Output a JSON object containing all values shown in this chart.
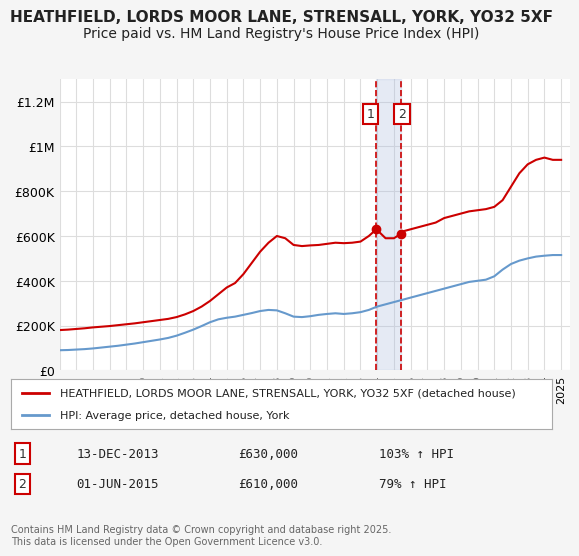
{
  "title": "HEATHFIELD, LORDS MOOR LANE, STRENSALL, YORK, YO32 5XF",
  "subtitle": "Price paid vs. HM Land Registry's House Price Index (HPI)",
  "title_fontsize": 11,
  "subtitle_fontsize": 10,
  "ylabel_fontsize": 9,
  "xlabel_fontsize": 8,
  "ylim": [
    0,
    1300000
  ],
  "yticks": [
    0,
    200000,
    400000,
    600000,
    800000,
    1000000,
    1200000
  ],
  "ytick_labels": [
    "£0",
    "£200K",
    "£400K",
    "£600K",
    "£800K",
    "£1M",
    "£1.2M"
  ],
  "background_color": "#f5f5f5",
  "plot_bg_color": "#ffffff",
  "grid_color": "#dddddd",
  "red_color": "#cc0000",
  "blue_color": "#6699cc",
  "transaction1_date": 2013.95,
  "transaction1_price": 630000,
  "transaction1_label": "13-DEC-2013",
  "transaction1_amount": "£630,000",
  "transaction1_pct": "103% ↑ HPI",
  "transaction2_date": 2015.42,
  "transaction2_price": 610000,
  "transaction2_label": "01-JUN-2015",
  "transaction2_amount": "£610,000",
  "transaction2_pct": "79% ↑ HPI",
  "vline_color": "#cc0000",
  "vline_style": "--",
  "shade_color": "#aabbdd",
  "legend_label_red": "HEATHFIELD, LORDS MOOR LANE, STRENSALL, YORK, YO32 5XF (detached house)",
  "legend_label_blue": "HPI: Average price, detached house, York",
  "footnote": "Contains HM Land Registry data © Crown copyright and database right 2025.\nThis data is licensed under the Open Government Licence v3.0.",
  "xtick_years": [
    1995,
    1996,
    1997,
    1998,
    1999,
    2000,
    2001,
    2002,
    2003,
    2004,
    2005,
    2006,
    2007,
    2008,
    2009,
    2010,
    2011,
    2012,
    2013,
    2014,
    2015,
    2016,
    2017,
    2018,
    2019,
    2020,
    2021,
    2022,
    2023,
    2024,
    2025
  ],
  "red_x": [
    1995.0,
    1995.5,
    1996.0,
    1996.5,
    1997.0,
    1997.5,
    1998.0,
    1998.5,
    1999.0,
    1999.5,
    2000.0,
    2000.5,
    2001.0,
    2001.5,
    2002.0,
    2002.5,
    2003.0,
    2003.5,
    2004.0,
    2004.5,
    2005.0,
    2005.5,
    2006.0,
    2006.5,
    2007.0,
    2007.5,
    2008.0,
    2008.5,
    2009.0,
    2009.5,
    2010.0,
    2010.5,
    2011.0,
    2011.5,
    2012.0,
    2012.5,
    2013.0,
    2013.5,
    2013.95,
    2014.5,
    2015.0,
    2015.42,
    2015.5,
    2016.0,
    2016.5,
    2017.0,
    2017.5,
    2018.0,
    2018.5,
    2019.0,
    2019.5,
    2020.0,
    2020.5,
    2021.0,
    2021.5,
    2022.0,
    2022.5,
    2023.0,
    2023.5,
    2024.0,
    2024.5,
    2025.0
  ],
  "red_y": [
    180000,
    182000,
    185000,
    188000,
    192000,
    195000,
    198000,
    202000,
    206000,
    210000,
    215000,
    220000,
    225000,
    230000,
    238000,
    250000,
    265000,
    285000,
    310000,
    340000,
    370000,
    390000,
    430000,
    480000,
    530000,
    570000,
    600000,
    590000,
    560000,
    555000,
    558000,
    560000,
    565000,
    570000,
    568000,
    570000,
    575000,
    600000,
    630000,
    590000,
    590000,
    610000,
    620000,
    630000,
    640000,
    650000,
    660000,
    680000,
    690000,
    700000,
    710000,
    715000,
    720000,
    730000,
    760000,
    820000,
    880000,
    920000,
    940000,
    950000,
    940000,
    940000
  ],
  "blue_x": [
    1995.0,
    1995.5,
    1996.0,
    1996.5,
    1997.0,
    1997.5,
    1998.0,
    1998.5,
    1999.0,
    1999.5,
    2000.0,
    2000.5,
    2001.0,
    2001.5,
    2002.0,
    2002.5,
    2003.0,
    2003.5,
    2004.0,
    2004.5,
    2005.0,
    2005.5,
    2006.0,
    2006.5,
    2007.0,
    2007.5,
    2008.0,
    2008.5,
    2009.0,
    2009.5,
    2010.0,
    2010.5,
    2011.0,
    2011.5,
    2012.0,
    2012.5,
    2013.0,
    2013.5,
    2014.0,
    2014.5,
    2015.0,
    2015.5,
    2016.0,
    2016.5,
    2017.0,
    2017.5,
    2018.0,
    2018.5,
    2019.0,
    2019.5,
    2020.0,
    2020.5,
    2021.0,
    2021.5,
    2022.0,
    2022.5,
    2023.0,
    2023.5,
    2024.0,
    2024.5,
    2025.0
  ],
  "blue_y": [
    90000,
    91000,
    93000,
    95000,
    98000,
    102000,
    106000,
    110000,
    115000,
    120000,
    126000,
    132000,
    138000,
    145000,
    155000,
    168000,
    182000,
    198000,
    215000,
    228000,
    235000,
    240000,
    248000,
    256000,
    265000,
    270000,
    268000,
    255000,
    240000,
    238000,
    242000,
    248000,
    252000,
    255000,
    252000,
    255000,
    260000,
    270000,
    285000,
    295000,
    305000,
    315000,
    325000,
    335000,
    345000,
    355000,
    365000,
    375000,
    385000,
    395000,
    400000,
    405000,
    420000,
    450000,
    475000,
    490000,
    500000,
    508000,
    512000,
    515000,
    515000
  ]
}
